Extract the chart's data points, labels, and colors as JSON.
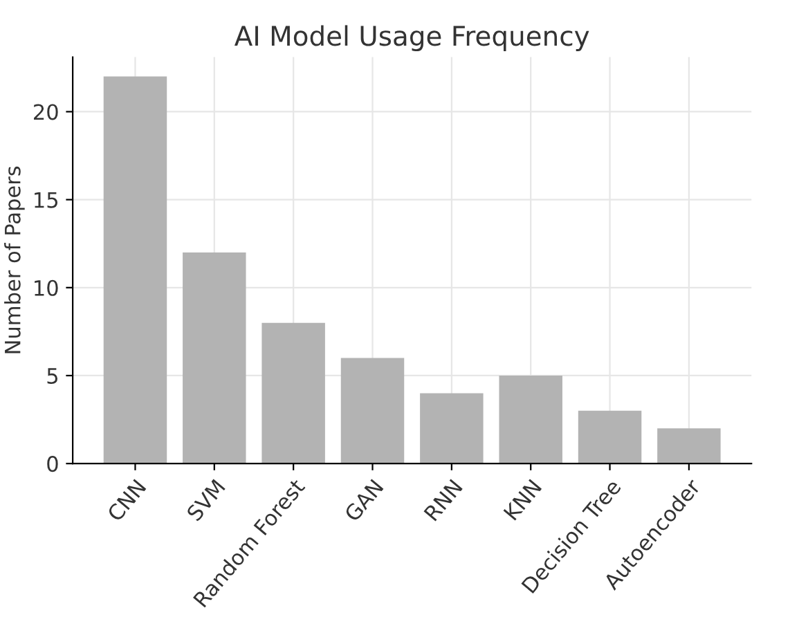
{
  "chart_data": {
    "type": "bar",
    "title": "AI Model Usage Frequency",
    "ylabel": "Number of Papers",
    "categories": [
      "CNN",
      "SVM",
      "Random Forest",
      "GAN",
      "RNN",
      "KNN",
      "Decision Tree",
      "Autoencoder"
    ],
    "values": [
      22,
      12,
      8,
      6,
      4,
      5,
      3,
      2
    ],
    "color": "#b3b3b3",
    "ylim": [
      0,
      23.1
    ],
    "yticks": [
      0,
      5,
      10,
      15,
      20
    ],
    "grid": true
  }
}
